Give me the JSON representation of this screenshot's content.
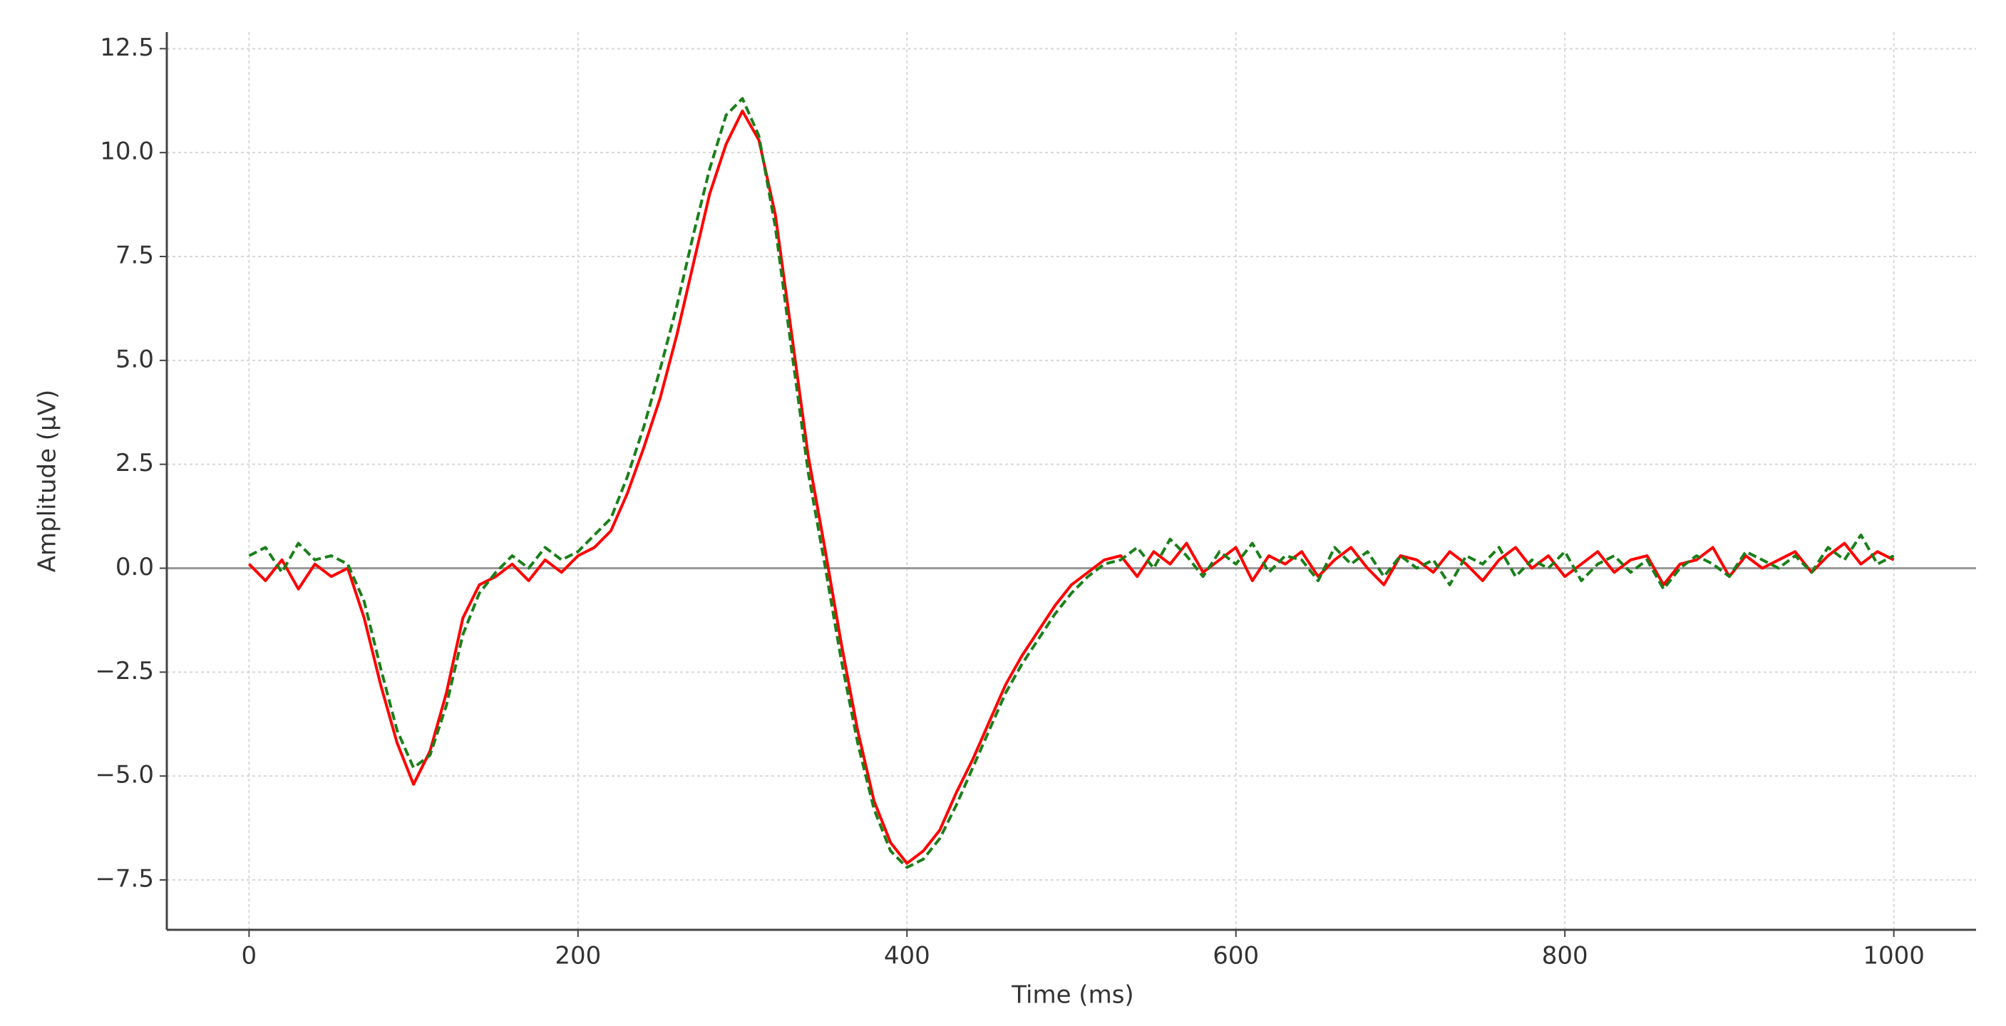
{
  "chart_data": {
    "type": "line",
    "x_label": "Time (ms)",
    "y_label": "Amplitude (µV)",
    "x": [
      0,
      10,
      20,
      30,
      40,
      50,
      60,
      70,
      80,
      90,
      100,
      110,
      120,
      130,
      140,
      150,
      160,
      170,
      180,
      190,
      200,
      210,
      220,
      230,
      240,
      250,
      260,
      270,
      280,
      290,
      300,
      310,
      320,
      330,
      340,
      350,
      360,
      370,
      380,
      390,
      400,
      410,
      420,
      430,
      440,
      450,
      460,
      470,
      480,
      490,
      500,
      510,
      520,
      530,
      540,
      550,
      560,
      570,
      580,
      590,
      600,
      610,
      620,
      630,
      640,
      650,
      660,
      670,
      680,
      690,
      700,
      710,
      720,
      730,
      740,
      750,
      760,
      770,
      780,
      790,
      800,
      810,
      820,
      830,
      840,
      850,
      860,
      870,
      880,
      890,
      900,
      910,
      920,
      930,
      940,
      950,
      960,
      970,
      980,
      990,
      1000
    ],
    "series": [
      {
        "color": "#ff0000",
        "dash": "solid",
        "values": [
          0.1,
          -0.3,
          0.2,
          -0.5,
          0.1,
          -0.2,
          0.0,
          -1.2,
          -2.8,
          -4.2,
          -5.2,
          -4.4,
          -3.0,
          -1.2,
          -0.4,
          -0.2,
          0.1,
          -0.3,
          0.2,
          -0.1,
          0.3,
          0.5,
          0.9,
          1.8,
          2.9,
          4.1,
          5.6,
          7.3,
          9.0,
          10.2,
          11.0,
          10.3,
          8.5,
          5.6,
          2.7,
          0.5,
          -1.8,
          -3.9,
          -5.6,
          -6.6,
          -7.1,
          -6.8,
          -6.3,
          -5.4,
          -4.6,
          -3.7,
          -2.8,
          -2.1,
          -1.5,
          -0.9,
          -0.4,
          -0.1,
          0.2,
          0.3,
          -0.2,
          0.4,
          0.1,
          0.6,
          -0.1,
          0.2,
          0.5,
          -0.3,
          0.3,
          0.1,
          0.4,
          -0.2,
          0.2,
          0.5,
          0.0,
          -0.4,
          0.3,
          0.2,
          -0.1,
          0.4,
          0.1,
          -0.3,
          0.2,
          0.5,
          0.0,
          0.3,
          -0.2,
          0.1,
          0.4,
          -0.1,
          0.2,
          0.3,
          -0.4,
          0.1,
          0.2,
          0.5,
          -0.2,
          0.3,
          0.0,
          0.2,
          0.4,
          -0.1,
          0.3,
          0.6,
          0.1,
          0.4,
          0.2
        ]
      },
      {
        "color": "#1a7f1a",
        "dash": "dashed",
        "values": [
          0.3,
          0.5,
          -0.1,
          0.6,
          0.2,
          0.3,
          0.1,
          -0.8,
          -2.4,
          -3.9,
          -4.8,
          -4.5,
          -3.3,
          -1.6,
          -0.6,
          -0.1,
          0.3,
          0.0,
          0.5,
          0.2,
          0.4,
          0.8,
          1.2,
          2.2,
          3.4,
          4.8,
          6.3,
          8.0,
          9.6,
          10.9,
          11.3,
          10.4,
          8.2,
          5.2,
          2.3,
          0.1,
          -2.2,
          -4.2,
          -5.8,
          -6.8,
          -7.2,
          -7.0,
          -6.5,
          -5.7,
          -4.8,
          -3.9,
          -3.0,
          -2.3,
          -1.7,
          -1.1,
          -0.6,
          -0.2,
          0.1,
          0.2,
          0.5,
          0.0,
          0.7,
          0.3,
          -0.2,
          0.4,
          0.1,
          0.6,
          -0.1,
          0.3,
          0.2,
          -0.3,
          0.5,
          0.1,
          0.4,
          -0.2,
          0.3,
          0.0,
          0.2,
          -0.4,
          0.3,
          0.1,
          0.5,
          -0.2,
          0.2,
          0.0,
          0.4,
          -0.3,
          0.1,
          0.3,
          -0.1,
          0.2,
          -0.5,
          0.0,
          0.3,
          0.1,
          -0.2,
          0.4,
          0.2,
          0.0,
          0.3,
          -0.1,
          0.5,
          0.2,
          0.8,
          0.1,
          0.3
        ]
      }
    ],
    "reference_line": 0,
    "xlim": [
      -50,
      1050
    ],
    "ylim": [
      -8.7,
      12.9
    ],
    "xticks": [
      0,
      200,
      400,
      600,
      800,
      1000
    ],
    "yticks": [
      {
        "value": -7.5,
        "label": "−7.5"
      },
      {
        "value": -5,
        "label": "−5.0"
      },
      {
        "value": -2.5,
        "label": "−2.5"
      },
      {
        "value": 0,
        "label": "0.0"
      },
      2.5,
      {
        "value": 5,
        "label": "5.0"
      },
      7.5,
      {
        "value": 10,
        "label": "10.0"
      },
      12.5
    ],
    "grid": true
  }
}
